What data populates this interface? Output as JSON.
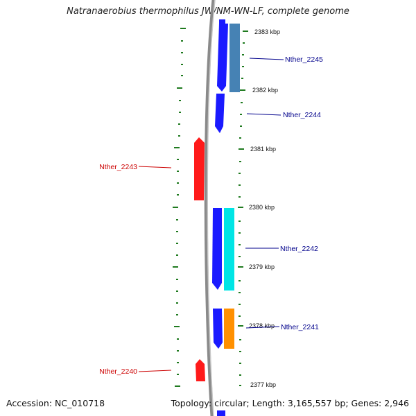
{
  "title": "Natranaerobius thermophilus JW/NM-WN-LF, complete genome",
  "accession": "Accession: NC_010718",
  "topology": "Topology: circular; Length: 3,165,557 bp; Genes: 2,946",
  "colors": {
    "background": "#ffffff",
    "backbone": "#8a8a8a",
    "ticks": "#1f7a1f",
    "forward_gene": "#1a1aff",
    "reverse_gene": "#ff1a1a",
    "forward_label": "#00008b",
    "reverse_label": "#cc0000"
  },
  "scale_labels": [
    "2383 kbp",
    "2382 kbp",
    "2381 kbp",
    "2380 kbp",
    "2379 kbp",
    "2378 kbp",
    "2377 kbp"
  ],
  "gene_labels": {
    "nther_2245": "Nther_2245",
    "nther_2244": "Nther_2244",
    "nther_2243": "Nther_2243",
    "nther_2242": "Nther_2242",
    "nther_2241": "Nther_2241",
    "nther_2240": "Nther_2240"
  }
}
